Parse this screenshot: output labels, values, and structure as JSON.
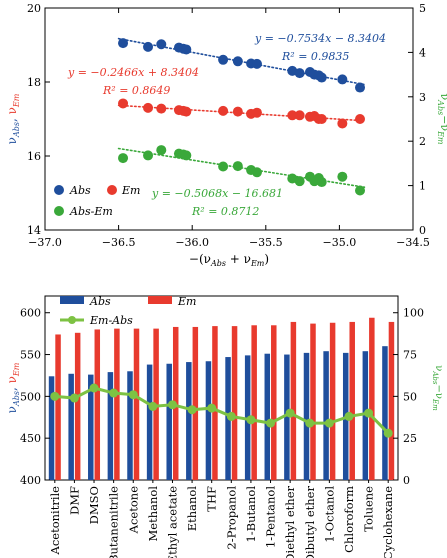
{
  "chart_data": [
    {
      "type": "scatter",
      "title": "",
      "xlabel": "−(νAbs + νEm)",
      "ylabel_left": "νAbs, νEm",
      "ylabel_right": "νAbs−νEm",
      "xlim": [
        -37.0,
        -34.5
      ],
      "ylim_left": [
        14,
        20
      ],
      "ylim_right": [
        0,
        5
      ],
      "xticks": [
        "−37.0",
        "−36.5",
        "−36.0",
        "−35.5",
        "−35.0",
        "−34.5"
      ],
      "yticks_left": [
        "14",
        "16",
        "18",
        "20"
      ],
      "yticks_right": [
        "0",
        "1",
        "2",
        "3",
        "4",
        "5"
      ],
      "grid": false,
      "legend_position": "bottom-left",
      "series": [
        {
          "name": "Abs",
          "color": "#1f4e9c",
          "axis": "left",
          "x": [
            -36.47,
            -36.3,
            -36.21,
            -36.09,
            -36.06,
            -36.04,
            -35.79,
            -35.69,
            -35.6,
            -35.56,
            -35.32,
            -35.27,
            -35.2,
            -35.17,
            -35.14,
            -35.12,
            -34.98,
            -34.86
          ],
          "y": [
            19.05,
            18.95,
            19.02,
            18.93,
            18.9,
            18.88,
            18.6,
            18.56,
            18.5,
            18.49,
            18.3,
            18.24,
            18.27,
            18.2,
            18.18,
            18.12,
            18.07,
            17.85
          ],
          "fit": {
            "slope": -0.7534,
            "intercept": -8.3404,
            "equation": "y = −0.7534x − 8.3404",
            "r2_label": "R² = 0.9835"
          }
        },
        {
          "name": "Em",
          "color": "#e83a2e",
          "axis": "left",
          "x": [
            -36.47,
            -36.3,
            -36.21,
            -36.09,
            -36.06,
            -36.04,
            -35.79,
            -35.69,
            -35.6,
            -35.56,
            -35.32,
            -35.27,
            -35.2,
            -35.17,
            -35.14,
            -35.12,
            -34.98,
            -34.86
          ],
          "y": [
            17.42,
            17.3,
            17.28,
            17.24,
            17.22,
            17.2,
            17.22,
            17.2,
            17.14,
            17.17,
            17.1,
            17.1,
            17.06,
            17.08,
            17.0,
            17.0,
            16.88,
            17.0
          ],
          "fit": {
            "slope": -0.2466,
            "intercept": 8.3404,
            "equation": "y = −0.2466x + 8.3404",
            "r2_label": "R² = 0.8649"
          }
        },
        {
          "name": "Abs-Em",
          "color": "#3aa83a",
          "axis": "right",
          "x": [
            -36.47,
            -36.3,
            -36.21,
            -36.09,
            -36.06,
            -36.04,
            -35.79,
            -35.69,
            -35.6,
            -35.56,
            -35.32,
            -35.27,
            -35.2,
            -35.17,
            -35.14,
            -35.12,
            -34.98,
            -34.86
          ],
          "y": [
            1.62,
            1.68,
            1.8,
            1.72,
            1.7,
            1.68,
            1.43,
            1.44,
            1.35,
            1.3,
            1.16,
            1.1,
            1.2,
            1.1,
            1.17,
            1.08,
            1.2,
            0.89
          ],
          "fit": {
            "slope": -0.5068,
            "intercept": -16.681,
            "equation": "y = −0.5068x − 16.681",
            "r2_label": "R² = 0.8712"
          }
        }
      ]
    },
    {
      "type": "bar",
      "title": "",
      "xlabel": "",
      "ylabel_left": "νAbs, νEm",
      "ylabel_right": "νAbs−νEm",
      "ylim_left": [
        400,
        620
      ],
      "ylim_right": [
        0,
        110
      ],
      "yticks_left": [
        "400",
        "450",
        "500",
        "550",
        "600"
      ],
      "yticks_right": [
        "0",
        "25",
        "50",
        "75",
        "100"
      ],
      "grid": false,
      "legend_position": "top-left",
      "categories": [
        "Acetonitrile",
        "DMF",
        "DMSO",
        "Butanenitrile",
        "Acetone",
        "Methanol",
        "Ethyl acetate",
        "Ethanol",
        "THF",
        "2-Propanol",
        "1-Butanol",
        "1-Pentanol",
        "Diethyl ether",
        "Dibutyl ether",
        "1-Octanol",
        "Chloroform",
        "Toluene",
        "Cyclohexane"
      ],
      "series": [
        {
          "name": "Abs",
          "color": "#1f4e9c",
          "axis": "left",
          "values": [
            524,
            527,
            526,
            529,
            530,
            538,
            539,
            541,
            542,
            547,
            549,
            551,
            550,
            552,
            554,
            552,
            554,
            560
          ]
        },
        {
          "name": "Em",
          "color": "#e83a2e",
          "axis": "left",
          "values": [
            574,
            576,
            580,
            581,
            581,
            581,
            583,
            583,
            584,
            584,
            585,
            585,
            589,
            587,
            588,
            589,
            594,
            589
          ]
        },
        {
          "name": "Em-Abs",
          "color": "#7dc243",
          "axis": "right",
          "style": "line-marker",
          "values": [
            50,
            49,
            55,
            52,
            51,
            44,
            45,
            42,
            43,
            38,
            36,
            34,
            40,
            34,
            34,
            38,
            40,
            28
          ]
        }
      ]
    }
  ]
}
